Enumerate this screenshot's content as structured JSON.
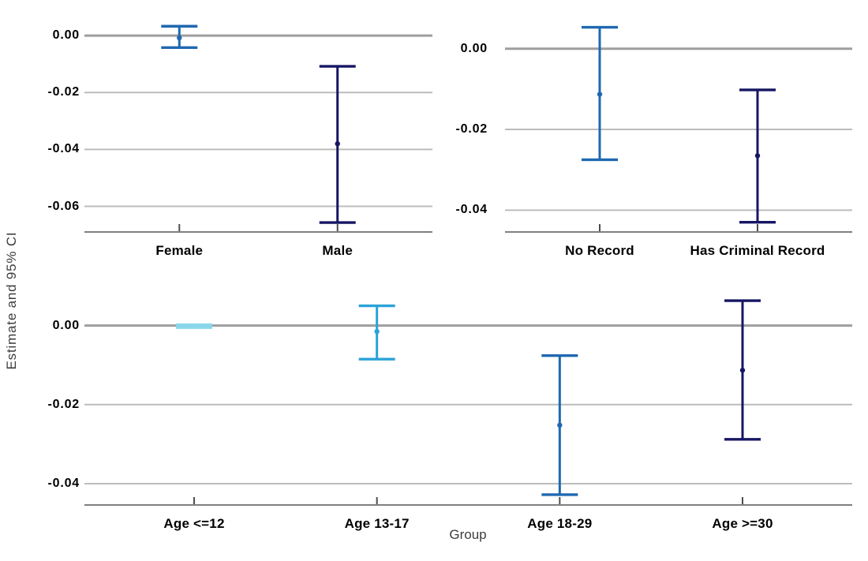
{
  "chart_data": {
    "type": "errorbar",
    "title": "",
    "ylabel": "Estimate and 95% CI",
    "xlabel": "Group",
    "grid": "horizontal",
    "legend": "none",
    "panels": [
      {
        "name": "gender",
        "position": "top-left",
        "ylim": [
          -0.069,
          0.0103
        ],
        "yticks": [
          {
            "value": 0.0,
            "label": "0.00"
          },
          {
            "value": -0.02,
            "label": "-0.02"
          },
          {
            "value": -0.04,
            "label": "-0.04"
          },
          {
            "value": -0.06,
            "label": "-0.06"
          }
        ],
        "points": [
          {
            "category": "Female",
            "estimate": -0.0008,
            "ci_low": -0.0042,
            "ci_high": 0.0033,
            "color": "#1F68B1"
          },
          {
            "category": "Male",
            "estimate": -0.038,
            "ci_low": -0.0657,
            "ci_high": -0.0108,
            "color": "#171664"
          }
        ]
      },
      {
        "name": "criminal-record",
        "position": "top-right",
        "ylim": [
          -0.0454,
          0.0105
        ],
        "yticks": [
          {
            "value": 0.0,
            "label": "0.00"
          },
          {
            "value": -0.02,
            "label": "-0.02"
          },
          {
            "value": -0.04,
            "label": "-0.04"
          }
        ],
        "points": [
          {
            "category": "No Record",
            "estimate": -0.0113,
            "ci_low": -0.0275,
            "ci_high": 0.0053,
            "color": "#1F68B1"
          },
          {
            "category": "Has Criminal Record",
            "estimate": -0.0265,
            "ci_low": -0.043,
            "ci_high": -0.0102,
            "color": "#171664"
          }
        ]
      },
      {
        "name": "age",
        "position": "bottom",
        "ylim": [
          -0.0454,
          0.0135
        ],
        "yticks": [
          {
            "value": 0.0,
            "label": "0.00"
          },
          {
            "value": -0.02,
            "label": "-0.02"
          },
          {
            "value": -0.04,
            "label": "-0.04"
          }
        ],
        "points": [
          {
            "category": "Age <=12",
            "estimate": -0.0001,
            "ci_low": -0.0005,
            "ci_high": 0.0002,
            "color": "#8AD8EC"
          },
          {
            "category": "Age 13-17",
            "estimate": -0.0015,
            "ci_low": -0.0085,
            "ci_high": 0.005,
            "color": "#2BA2D8"
          },
          {
            "category": "Age 18-29",
            "estimate": -0.0252,
            "ci_low": -0.0428,
            "ci_high": -0.0076,
            "color": "#1F68B1"
          },
          {
            "category": "Age >=30",
            "estimate": -0.0113,
            "ci_low": -0.0288,
            "ci_high": 0.0063,
            "color": "#171664"
          }
        ]
      }
    ]
  },
  "styles": {
    "background_color": "#FFFFFF",
    "grid_color": "#BCBCBC",
    "zero_line_color": "#9E9E9E",
    "axis_line_color": "#808080",
    "tick_mark_color": "#4D4D4D",
    "tick_label_color": "#000000",
    "axis_title_color": "#3C3C3C"
  }
}
